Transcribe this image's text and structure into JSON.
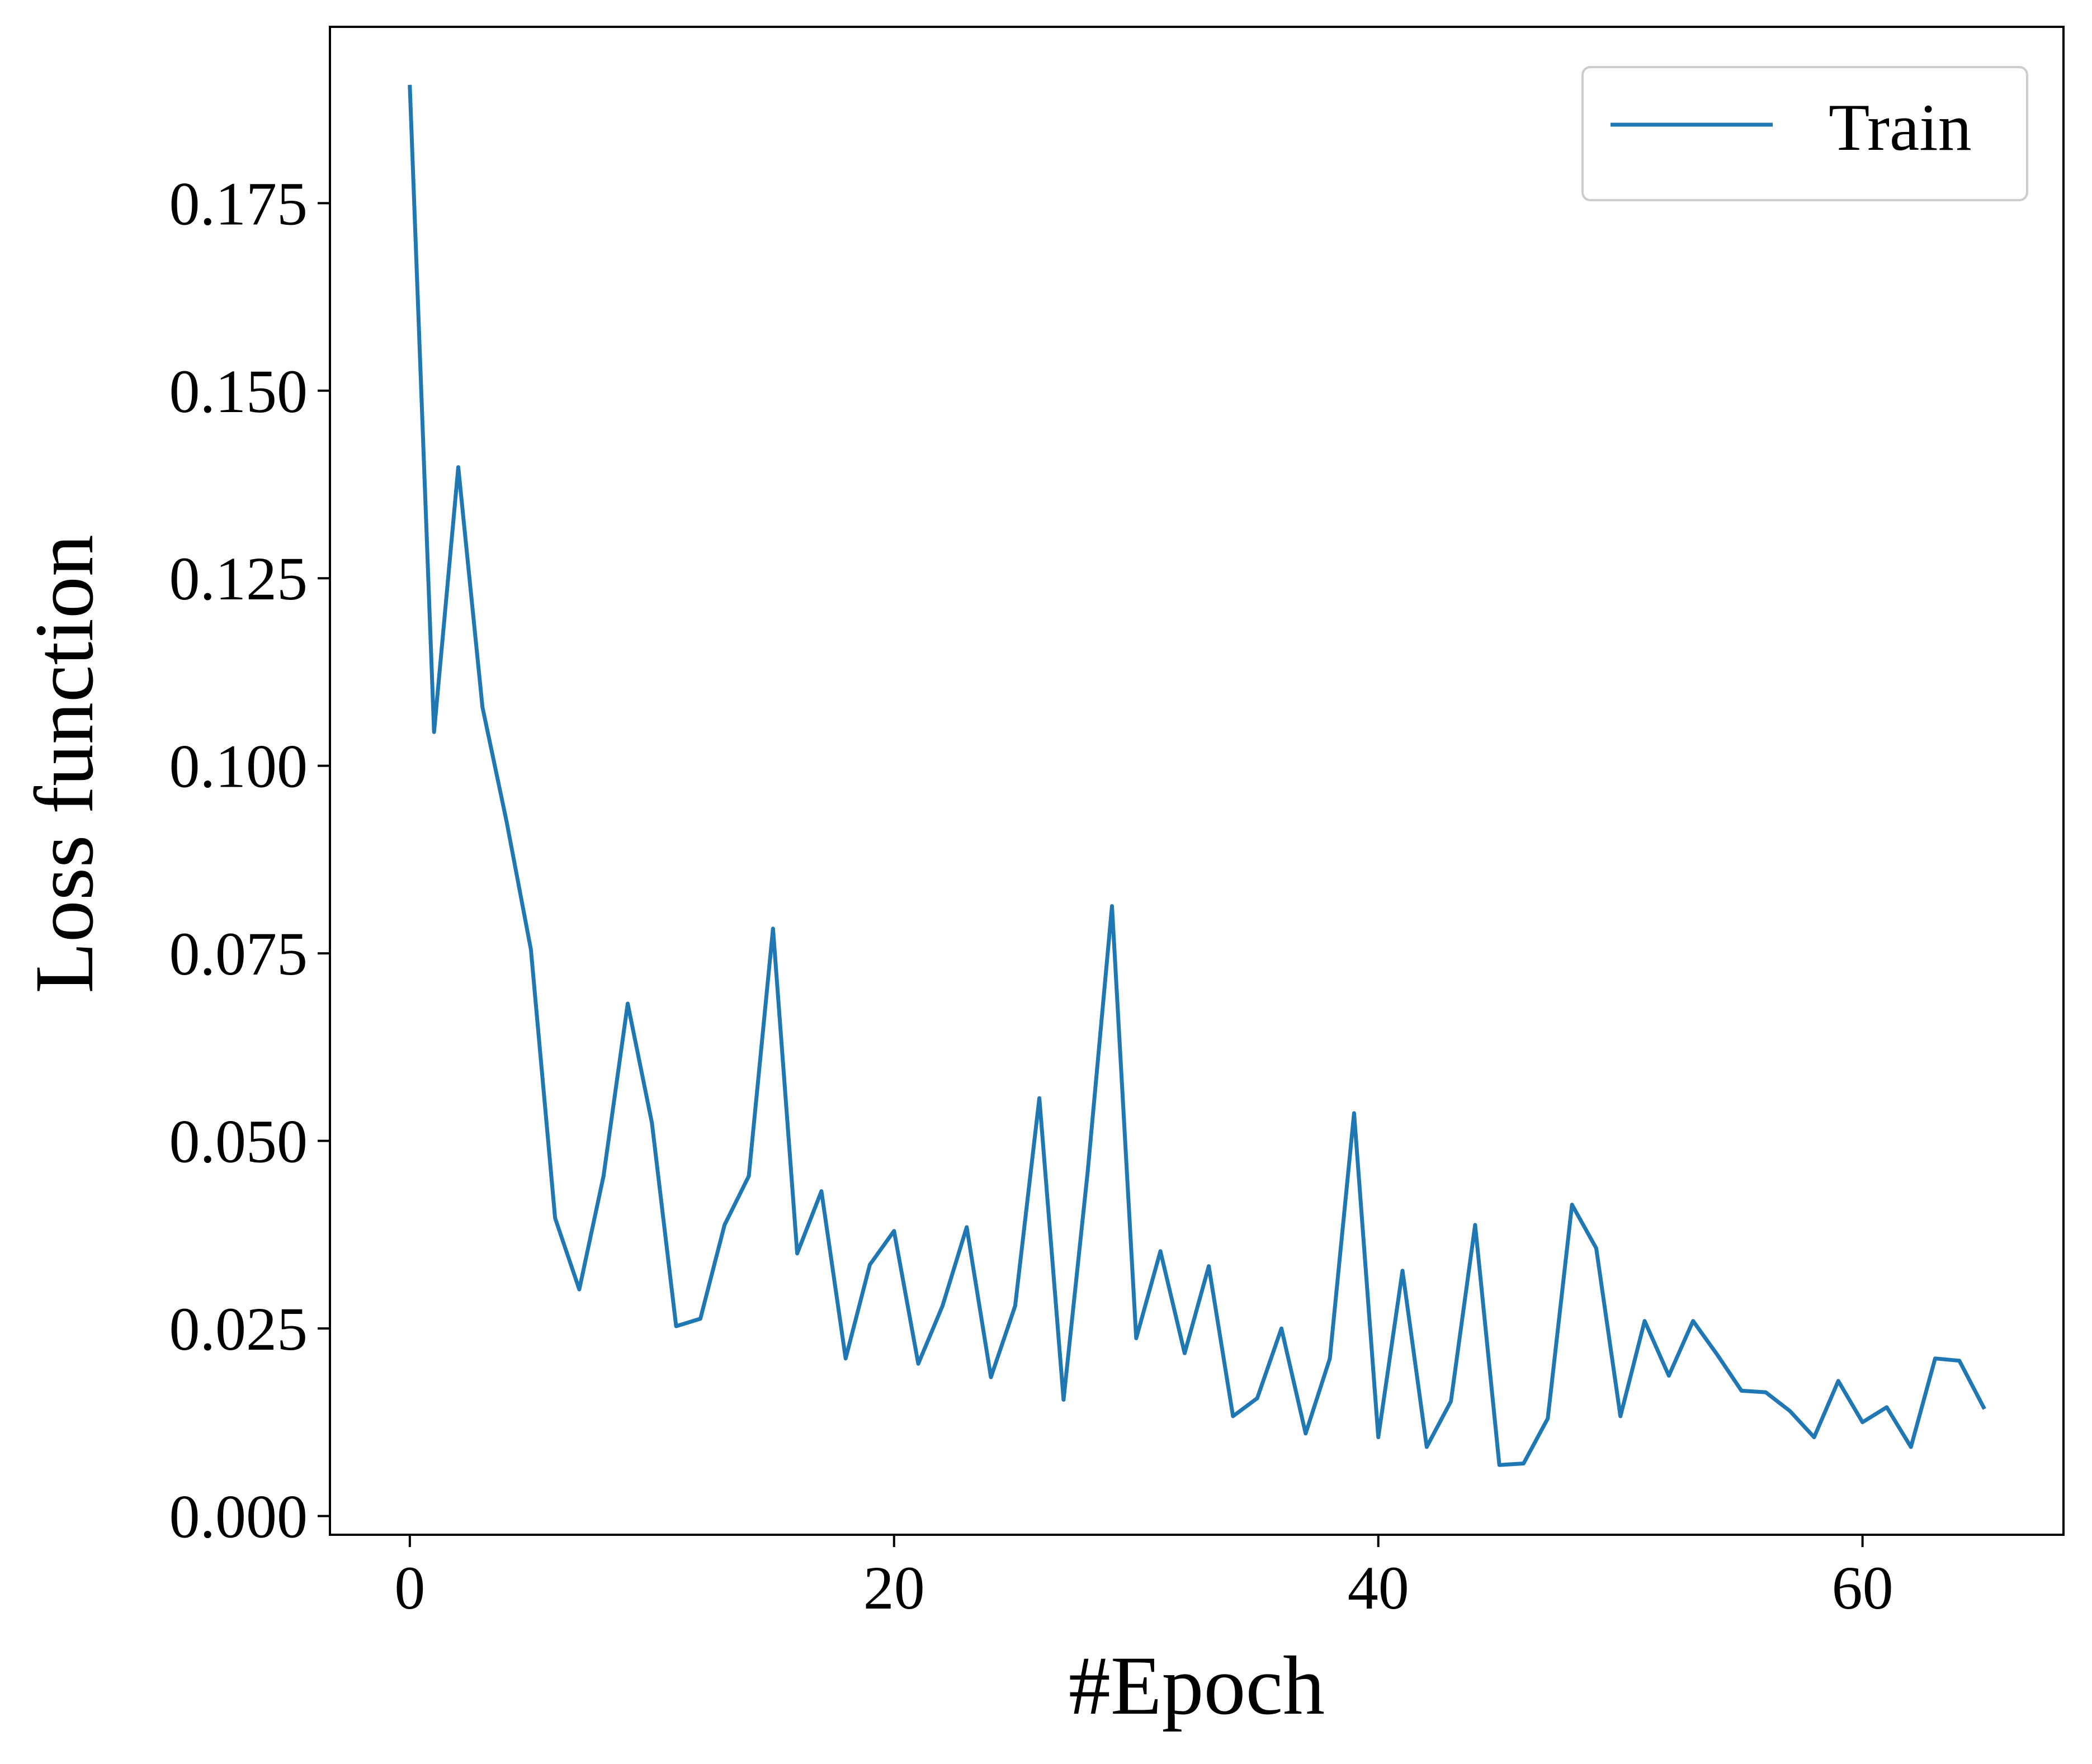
{
  "chart_data": {
    "type": "line",
    "title": "",
    "xlabel": "#Epoch",
    "ylabel": "Loss function",
    "xlim": [
      -3.3,
      68.3
    ],
    "ylim": [
      -0.0025,
      0.1985
    ],
    "xticks": [
      0,
      20,
      40,
      60
    ],
    "xtick_labels": [
      "0",
      "20",
      "40",
      "60"
    ],
    "yticks": [
      0.0,
      0.025,
      0.05,
      0.075,
      0.1,
      0.125,
      0.15,
      0.175
    ],
    "ytick_labels": [
      "0.000",
      "0.025",
      "0.050",
      "0.075",
      "0.100",
      "0.125",
      "0.150",
      "0.175"
    ],
    "grid": false,
    "legend_position": "upper right",
    "series": [
      {
        "name": "Train",
        "color": "#1f77b4",
        "x": [
          0,
          1,
          2,
          3,
          4,
          5,
          6,
          7,
          8,
          9,
          10,
          11,
          12,
          13,
          14,
          15,
          16,
          17,
          18,
          19,
          20,
          21,
          22,
          23,
          24,
          25,
          26,
          27,
          28,
          29,
          30,
          31,
          32,
          33,
          34,
          35,
          36,
          37,
          38,
          39,
          40,
          41,
          42,
          43,
          44,
          45,
          46,
          47,
          48,
          49,
          50,
          51,
          52,
          53,
          54,
          55,
          56,
          57,
          58,
          59,
          60,
          61,
          62,
          63,
          64,
          65
        ],
        "values": [
          0.1905,
          0.1045,
          0.1398,
          0.1078,
          0.0925,
          0.0755,
          0.0397,
          0.0302,
          0.0453,
          0.0683,
          0.0524,
          0.0253,
          0.0263,
          0.0388,
          0.0453,
          0.0783,
          0.035,
          0.0433,
          0.021,
          0.0335,
          0.038,
          0.0203,
          0.028,
          0.0385,
          0.0185,
          0.028,
          0.0557,
          0.0155,
          0.046,
          0.0813,
          0.0237,
          0.0353,
          0.0217,
          0.0333,
          0.0133,
          0.0157,
          0.025,
          0.011,
          0.021,
          0.0537,
          0.0105,
          0.0327,
          0.0092,
          0.0153,
          0.0388,
          0.0068,
          0.007,
          0.013,
          0.0415,
          0.0357,
          0.0133,
          0.026,
          0.0187,
          0.026,
          0.0215,
          0.0167,
          0.0165,
          0.014,
          0.0105,
          0.018,
          0.0125,
          0.0145,
          0.0092,
          0.021,
          0.0207,
          0.0145
        ]
      }
    ]
  }
}
